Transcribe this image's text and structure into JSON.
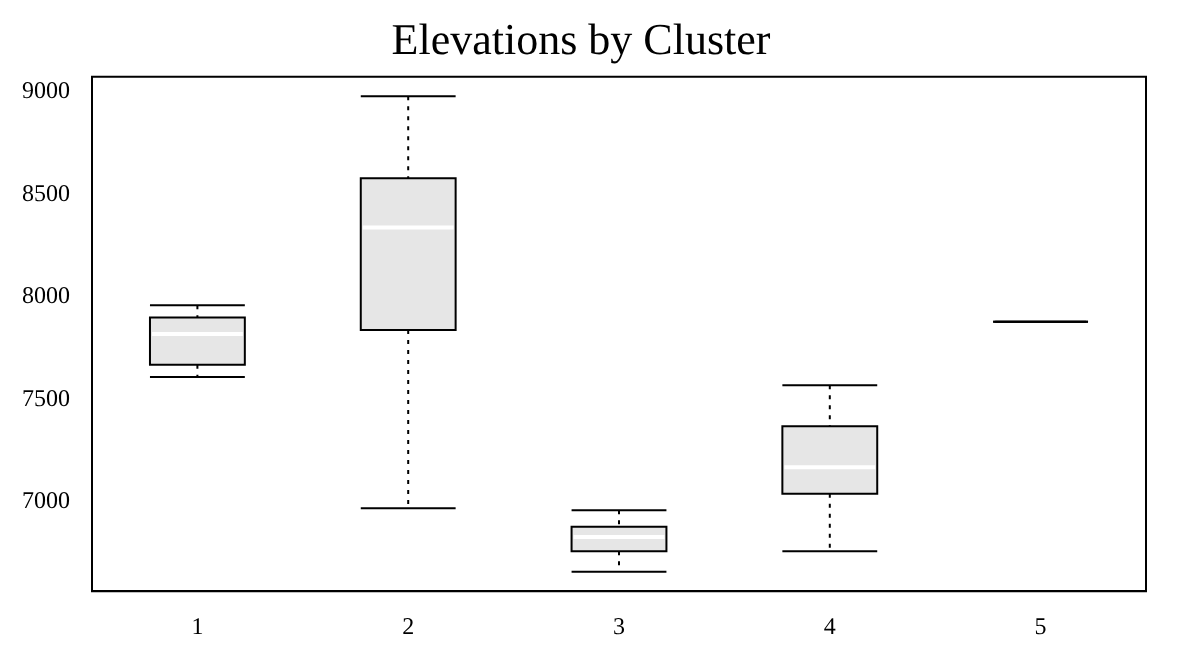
{
  "chart_data": {
    "type": "box",
    "title": "Elevations by Cluster",
    "categories": [
      "1",
      "2",
      "3",
      "4",
      "5"
    ],
    "boxes": [
      {
        "low": 7610,
        "q1": 7670,
        "median": 7820,
        "q3": 7900,
        "high": 7960
      },
      {
        "low": 6970,
        "q1": 7840,
        "median": 8340,
        "q3": 8580,
        "high": 8980
      },
      {
        "low": 6660,
        "q1": 6760,
        "median": 6830,
        "q3": 6880,
        "high": 6960
      },
      {
        "low": 6760,
        "q1": 7040,
        "median": 7170,
        "q3": 7370,
        "high": 7570
      },
      {
        "low": 7880,
        "q1": 7880,
        "median": 7880,
        "q3": 7880,
        "high": 7880
      }
    ],
    "ylim": [
      6565,
      9075
    ],
    "yticks": [
      7000,
      7500,
      8000,
      8500,
      9000
    ],
    "grid": false,
    "legend": false
  }
}
